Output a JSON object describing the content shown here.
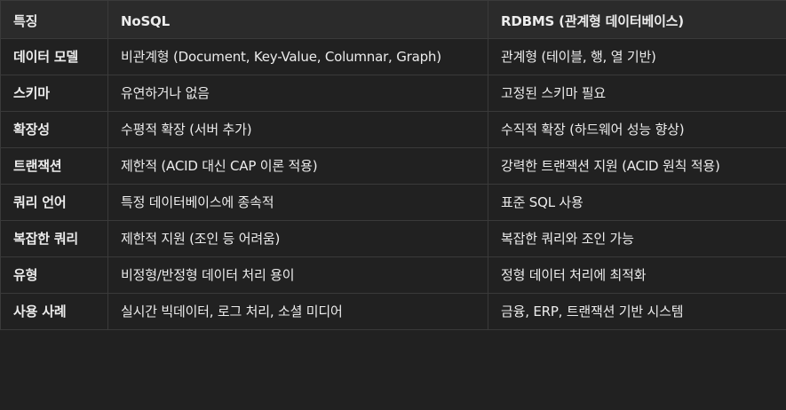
{
  "table": {
    "headers": [
      "특징",
      "NoSQL",
      "RDBMS (관계형 데이터베이스)"
    ],
    "rows": [
      {
        "feature": "데이터 모델",
        "nosql": "비관계형 (Document, Key-Value, Columnar, Graph)",
        "rdbms": "관계형 (테이블, 행, 열 기반)"
      },
      {
        "feature": "스키마",
        "nosql": "유연하거나 없음",
        "rdbms": "고정된 스키마 필요"
      },
      {
        "feature": "확장성",
        "nosql": "수평적 확장 (서버 추가)",
        "rdbms": "수직적 확장 (하드웨어 성능 향상)"
      },
      {
        "feature": "트랜잭션",
        "nosql": "제한적 (ACID 대신 CAP 이론 적용)",
        "rdbms": "강력한 트랜잭션 지원 (ACID 원칙 적용)"
      },
      {
        "feature": "쿼리 언어",
        "nosql": "특정 데이터베이스에 종속적",
        "rdbms": "표준 SQL 사용"
      },
      {
        "feature": "복잡한 쿼리",
        "nosql": "제한적 지원 (조인 등 어려움)",
        "rdbms": "복잡한 쿼리와 조인 가능"
      },
      {
        "feature": "유형",
        "nosql": "비정형/반정형 데이터 처리 용이",
        "rdbms": "정형 데이터 처리에 최적화"
      },
      {
        "feature": "사용 사례",
        "nosql": "실시간 빅데이터, 로그 처리, 소셜 미디어",
        "rdbms": "금융, ERP, 트랜잭션 기반 시스템"
      }
    ]
  }
}
